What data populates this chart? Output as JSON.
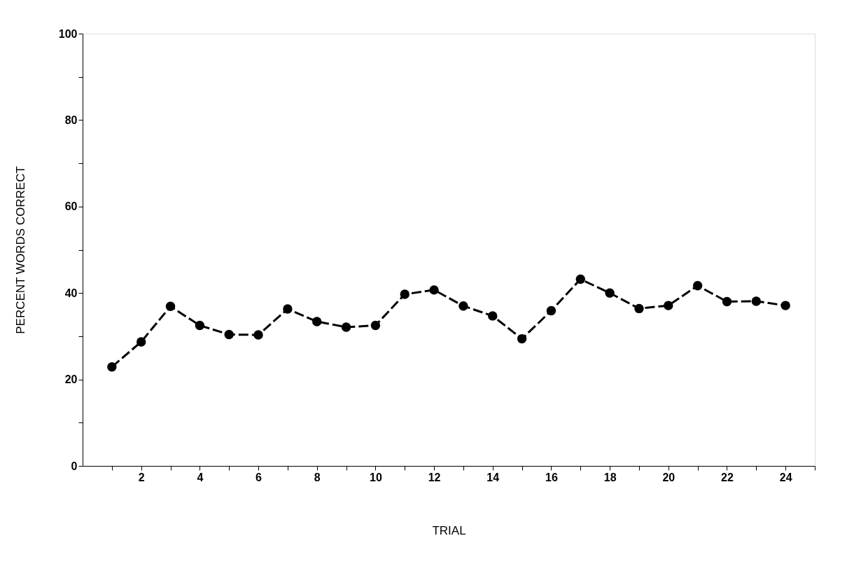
{
  "chart_data": {
    "type": "line",
    "xlabel": "TRIAL",
    "ylabel": "PERCENT WORDS CORRECT",
    "x": [
      1,
      2,
      3,
      4,
      5,
      6,
      7,
      8,
      9,
      10,
      11,
      12,
      13,
      14,
      15,
      16,
      17,
      18,
      19,
      20,
      21,
      22,
      23,
      24
    ],
    "series": [
      {
        "color": "#000000",
        "values": [
          22.9,
          28.7,
          36.9,
          32.5,
          30.4,
          30.3,
          36.3,
          33.4,
          32.1,
          32.5,
          39.7,
          40.7,
          37.0,
          34.7,
          29.4,
          35.9,
          43.2,
          40.0,
          36.4,
          37.1,
          41.7,
          38.0,
          38.1,
          37.1
        ]
      }
    ],
    "xlim": [
      0,
      25
    ],
    "xticks": [
      {
        "value": 1,
        "label": null
      },
      2,
      {
        "value": 3,
        "label": null
      },
      4,
      {
        "value": 5,
        "label": null
      },
      6,
      {
        "value": 7,
        "label": null
      },
      8,
      {
        "value": 9,
        "label": null
      },
      10,
      {
        "value": 11,
        "label": null
      },
      12,
      {
        "value": 13,
        "label": null
      },
      14,
      {
        "value": 15,
        "label": null
      },
      16,
      {
        "value": 17,
        "label": null
      },
      18,
      {
        "value": 19,
        "label": null
      },
      20,
      {
        "value": 21,
        "label": null
      },
      22,
      {
        "value": 23,
        "label": null
      },
      24,
      {
        "value": 25,
        "label": null
      }
    ],
    "ylim": [
      0,
      100
    ],
    "yticks": [
      0,
      {
        "value": 10,
        "label": null
      },
      20,
      {
        "value": 30,
        "label": null
      },
      40,
      {
        "value": 50,
        "label": null
      },
      60,
      {
        "value": 70,
        "label": null
      },
      80,
      {
        "value": 90,
        "label": null
      },
      100
    ],
    "marker": "circle",
    "line_style": "dashed",
    "grid": false
  }
}
